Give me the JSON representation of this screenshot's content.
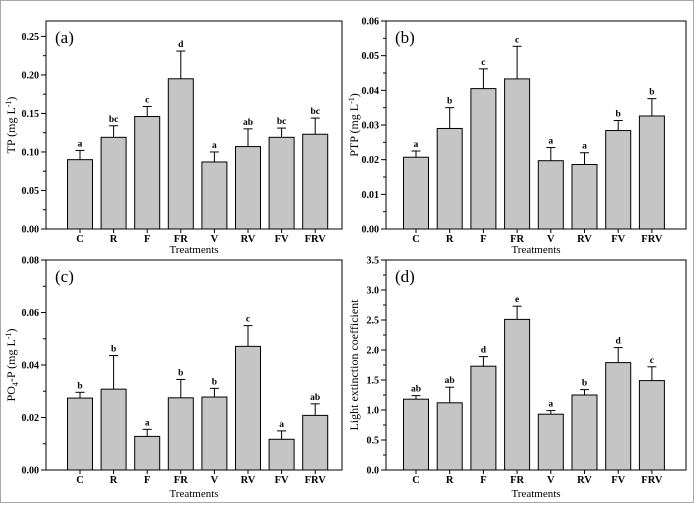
{
  "figure": {
    "background": "#ffffff",
    "bar_fill": "#c5c5c5",
    "bar_stroke": "#000000",
    "axis_color": "#000000",
    "text_color": "#000000"
  },
  "chart_data": [
    {
      "type": "bar",
      "panel_label": "(a)",
      "categories": [
        "C",
        "R",
        "F",
        "FR",
        "V",
        "RV",
        "FV",
        "FRV"
      ],
      "values": [
        0.09,
        0.119,
        0.146,
        0.195,
        0.087,
        0.107,
        0.119,
        0.123
      ],
      "errors_up": [
        0.012,
        0.015,
        0.013,
        0.036,
        0.013,
        0.023,
        0.012,
        0.021
      ],
      "sig_letters": [
        "a",
        "bc",
        "c",
        "d",
        "a",
        "ab",
        "bc",
        "bc"
      ],
      "xlabel": "Treatments",
      "ylabel_segments": [
        {
          "t": "TP (mg L"
        },
        {
          "t": "-1",
          "s": "sup"
        },
        {
          "t": ")"
        }
      ],
      "ylim": [
        0,
        0.27
      ],
      "yticks": [
        {
          "v": 0.0,
          "label": "0.00"
        },
        {
          "v": 0.05,
          "label": "0.05"
        },
        {
          "v": 0.1,
          "label": "0.10"
        },
        {
          "v": 0.15,
          "label": "0.15"
        },
        {
          "v": 0.2,
          "label": "0.20"
        },
        {
          "v": 0.25,
          "label": "0.25"
        }
      ],
      "minor_ticks": true,
      "grid": false,
      "legend": "none"
    },
    {
      "type": "bar",
      "panel_label": "(b)",
      "categories": [
        "C",
        "R",
        "F",
        "FR",
        "V",
        "RV",
        "FV",
        "FRV"
      ],
      "values": [
        0.0207,
        0.029,
        0.0405,
        0.0433,
        0.0197,
        0.0186,
        0.0284,
        0.0326
      ],
      "errors_up": [
        0.0018,
        0.006,
        0.0057,
        0.0094,
        0.0038,
        0.0034,
        0.0029,
        0.005
      ],
      "sig_letters": [
        "a",
        "b",
        "c",
        "c",
        "a",
        "a",
        "b",
        "b"
      ],
      "xlabel": "Treatments",
      "ylabel_segments": [
        {
          "t": "PTP (mg L"
        },
        {
          "t": "-1",
          "s": "sup"
        },
        {
          "t": ")"
        }
      ],
      "ylim": [
        0,
        0.06
      ],
      "yticks": [
        {
          "v": 0.0,
          "label": "0.00"
        },
        {
          "v": 0.01,
          "label": "0.01"
        },
        {
          "v": 0.02,
          "label": "0.02"
        },
        {
          "v": 0.03,
          "label": "0.03"
        },
        {
          "v": 0.04,
          "label": "0.04"
        },
        {
          "v": 0.05,
          "label": "0.05"
        },
        {
          "v": 0.06,
          "label": "0.06"
        }
      ],
      "minor_ticks": true,
      "grid": false,
      "legend": "none"
    },
    {
      "type": "bar",
      "panel_label": "(c)",
      "categories": [
        "C",
        "R",
        "F",
        "FR",
        "V",
        "RV",
        "FV",
        "FRV"
      ],
      "values": [
        0.0274,
        0.0308,
        0.0128,
        0.0275,
        0.0278,
        0.0471,
        0.0117,
        0.0208
      ],
      "errors_up": [
        0.0022,
        0.0128,
        0.0027,
        0.007,
        0.0033,
        0.0079,
        0.0032,
        0.0044
      ],
      "sig_letters": [
        "b",
        "b",
        "a",
        "b",
        "b",
        "c",
        "a",
        "ab"
      ],
      "xlabel": "Treatments",
      "ylabel_segments": [
        {
          "t": "PO"
        },
        {
          "t": "4",
          "s": "sub"
        },
        {
          "t": "-P (mg L"
        },
        {
          "t": "-1",
          "s": "sup"
        },
        {
          "t": ")"
        }
      ],
      "ylim": [
        0,
        0.08
      ],
      "yticks": [
        {
          "v": 0.0,
          "label": "0.00"
        },
        {
          "v": 0.02,
          "label": "0.02"
        },
        {
          "v": 0.04,
          "label": "0.04"
        },
        {
          "v": 0.06,
          "label": "0.06"
        },
        {
          "v": 0.08,
          "label": "0.08"
        }
      ],
      "minor_ticks": true,
      "grid": false,
      "legend": "none"
    },
    {
      "type": "bar",
      "panel_label": "(d)",
      "categories": [
        "C",
        "R",
        "F",
        "FR",
        "V",
        "RV",
        "FV",
        "FRV"
      ],
      "values": [
        1.18,
        1.12,
        1.73,
        2.51,
        0.93,
        1.25,
        1.79,
        1.49
      ],
      "errors_up": [
        0.06,
        0.26,
        0.16,
        0.22,
        0.06,
        0.09,
        0.25,
        0.23
      ],
      "sig_letters": [
        "ab",
        "ab",
        "d",
        "e",
        "a",
        "b",
        "d",
        "c"
      ],
      "xlabel": "Treatments",
      "ylabel_segments": [
        {
          "t": "Light extinction coefficient"
        }
      ],
      "ylim": [
        0,
        3.5
      ],
      "yticks": [
        {
          "v": 0.0,
          "label": "0.0"
        },
        {
          "v": 0.5,
          "label": "0.5"
        },
        {
          "v": 1.0,
          "label": "1.0"
        },
        {
          "v": 1.5,
          "label": "1.5"
        },
        {
          "v": 2.0,
          "label": "2.0"
        },
        {
          "v": 2.5,
          "label": "2.5"
        },
        {
          "v": 3.0,
          "label": "3.0"
        },
        {
          "v": 3.5,
          "label": "3.5"
        }
      ],
      "minor_ticks": true,
      "grid": false,
      "legend": "none"
    }
  ]
}
